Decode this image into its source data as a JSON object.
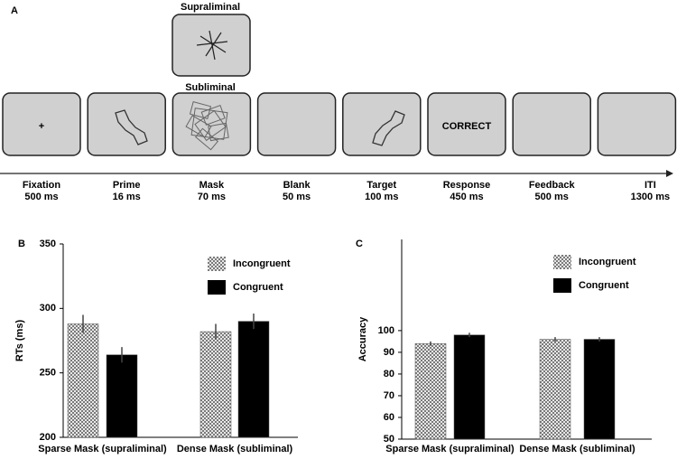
{
  "timeline": {
    "label": "A",
    "supraliminal": "Supraliminal",
    "subliminal": "Subliminal",
    "steps": [
      {
        "name": "Fixation",
        "duration": "500 ms",
        "content": "+"
      },
      {
        "name": "Prime",
        "duration": "16 ms"
      },
      {
        "name": "Mask",
        "duration": "70 ms"
      },
      {
        "name": "Blank",
        "duration": "50 ms"
      },
      {
        "name": "Target",
        "duration": "100 ms"
      },
      {
        "name": "Response",
        "duration": "450 ms",
        "content": "CORRECT"
      },
      {
        "name": "Feedback",
        "duration": "500 ms"
      },
      {
        "name": "ITI",
        "duration": "1300 ms"
      }
    ]
  },
  "chart_data": [
    {
      "type": "bar",
      "label": "B",
      "y_label": "RTs (ms)",
      "categories": [
        "Sparse Mask (supraliminal)",
        "Dense Mask (subliminal)"
      ],
      "series": [
        {
          "name": "Incongruent",
          "color": "#7a7a7a",
          "pattern": "checker",
          "values": [
            288,
            282
          ],
          "errors": [
            7,
            6
          ]
        },
        {
          "name": "Congruent",
          "color": "#000000",
          "values": [
            264,
            290
          ],
          "errors": [
            6,
            6
          ]
        }
      ],
      "ylim": [
        200,
        350
      ],
      "yticks": [
        200,
        250,
        300,
        350
      ],
      "legend": "top-right"
    },
    {
      "type": "bar",
      "label": "C",
      "y_label": "Accuracy",
      "categories": [
        "Sparse Mask (supraliminal)",
        "Dense Mask (subliminal)"
      ],
      "series": [
        {
          "name": "Incongruent",
          "color": "#7a7a7a",
          "pattern": "checker",
          "values": [
            94,
            96
          ],
          "errors": [
            1,
            1
          ]
        },
        {
          "name": "Congruent",
          "color": "#000000",
          "values": [
            98,
            96
          ],
          "errors": [
            1,
            1
          ]
        }
      ],
      "ylim": [
        50,
        142
      ],
      "yticks": [
        50,
        60,
        70,
        80,
        90,
        100
      ],
      "legend": "top-right"
    }
  ]
}
